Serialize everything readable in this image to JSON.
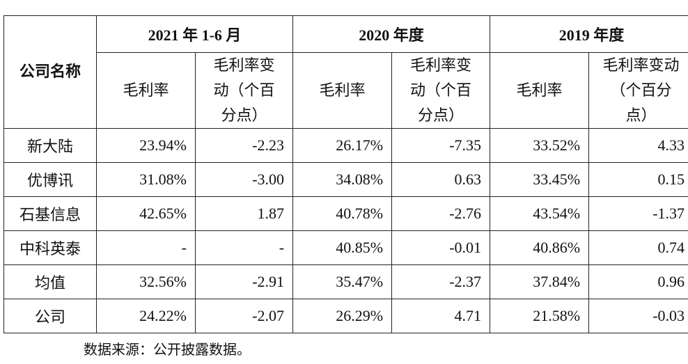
{
  "table": {
    "header": {
      "company": "公司名称",
      "periods": [
        "2021 年 1-6 月",
        "2020 年度",
        "2019 年度"
      ],
      "metrics": [
        "毛利率",
        "毛利率变动（个百分点）"
      ]
    },
    "rows": [
      {
        "name": "新大陆",
        "cells": [
          "23.94%",
          "-2.23",
          "26.17%",
          "-7.35",
          "33.52%",
          "4.33"
        ]
      },
      {
        "name": "优博讯",
        "cells": [
          "31.08%",
          "-3.00",
          "34.08%",
          "0.63",
          "33.45%",
          "0.15"
        ]
      },
      {
        "name": "石基信息",
        "cells": [
          "42.65%",
          "1.87",
          "40.78%",
          "-2.76",
          "43.54%",
          "-1.37"
        ]
      },
      {
        "name": "中科英泰",
        "cells": [
          "-",
          "-",
          "40.85%",
          "-0.01",
          "40.86%",
          "0.74"
        ]
      },
      {
        "name": "均值",
        "cells": [
          "32.56%",
          "-2.91",
          "35.47%",
          "-2.37",
          "37.84%",
          "0.96"
        ]
      },
      {
        "name": "公司",
        "cells": [
          "24.22%",
          "-2.07",
          "26.29%",
          "4.71",
          "21.58%",
          "-0.03"
        ]
      }
    ]
  },
  "footer": "数据来源：公开披露数据。"
}
